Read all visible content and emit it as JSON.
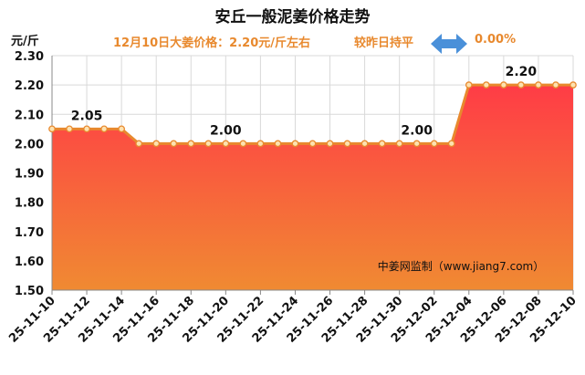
{
  "chart_data": {
    "type": "area",
    "title": "安丘一般泥姜价格走势",
    "ylabel": "元/斤",
    "subtitle": "12月10日大姜价格：2.20元/斤左右",
    "compare_label": "较昨日持平",
    "compare_icon": "left-right-arrow-icon",
    "change_value": "0.00%",
    "watermark": "中姜网监制（www.jiang7.com）",
    "ylim": [
      1.5,
      2.3
    ],
    "yticks": [
      "2.30",
      "2.20",
      "2.10",
      "2.00",
      "1.90",
      "1.80",
      "1.70",
      "1.60",
      "1.50"
    ],
    "xtick_labels": [
      "25-11-10",
      "25-11-12",
      "25-11-14",
      "25-11-16",
      "25-11-18",
      "25-11-20",
      "25-11-22",
      "25-11-24",
      "25-11-26",
      "25-11-28",
      "25-11-30",
      "25-12-02",
      "25-12-04",
      "25-12-06",
      "25-12-08",
      "25-12-10"
    ],
    "x": [
      "25-11-10",
      "25-11-11",
      "25-11-12",
      "25-11-13",
      "25-11-14",
      "25-11-15",
      "25-11-16",
      "25-11-17",
      "25-11-18",
      "25-11-19",
      "25-11-20",
      "25-11-21",
      "25-11-22",
      "25-11-23",
      "25-11-24",
      "25-11-25",
      "25-11-26",
      "25-11-27",
      "25-11-28",
      "25-11-29",
      "25-11-30",
      "25-12-01",
      "25-12-02",
      "25-12-03",
      "25-12-04",
      "25-12-05",
      "25-12-06",
      "25-12-07",
      "25-12-08",
      "25-12-09",
      "25-12-10"
    ],
    "values": [
      2.05,
      2.05,
      2.05,
      2.05,
      2.05,
      2.0,
      2.0,
      2.0,
      2.0,
      2.0,
      2.0,
      2.0,
      2.0,
      2.0,
      2.0,
      2.0,
      2.0,
      2.0,
      2.0,
      2.0,
      2.0,
      2.0,
      2.0,
      2.0,
      2.2,
      2.2,
      2.2,
      2.2,
      2.2,
      2.2,
      2.2
    ],
    "data_labels": [
      {
        "index": 2,
        "text": "2.05"
      },
      {
        "index": 10,
        "text": "2.00"
      },
      {
        "index": 21,
        "text": "2.00"
      },
      {
        "index": 27,
        "text": "2.20"
      }
    ],
    "colors": {
      "line": "#e8892e",
      "fill_top": "#ff3c46",
      "fill_bottom": "#f08a32",
      "marker_fill": "#fde2b0",
      "arrow": "#4a90d9",
      "accent_text": "#e8892e"
    },
    "grid": true
  }
}
